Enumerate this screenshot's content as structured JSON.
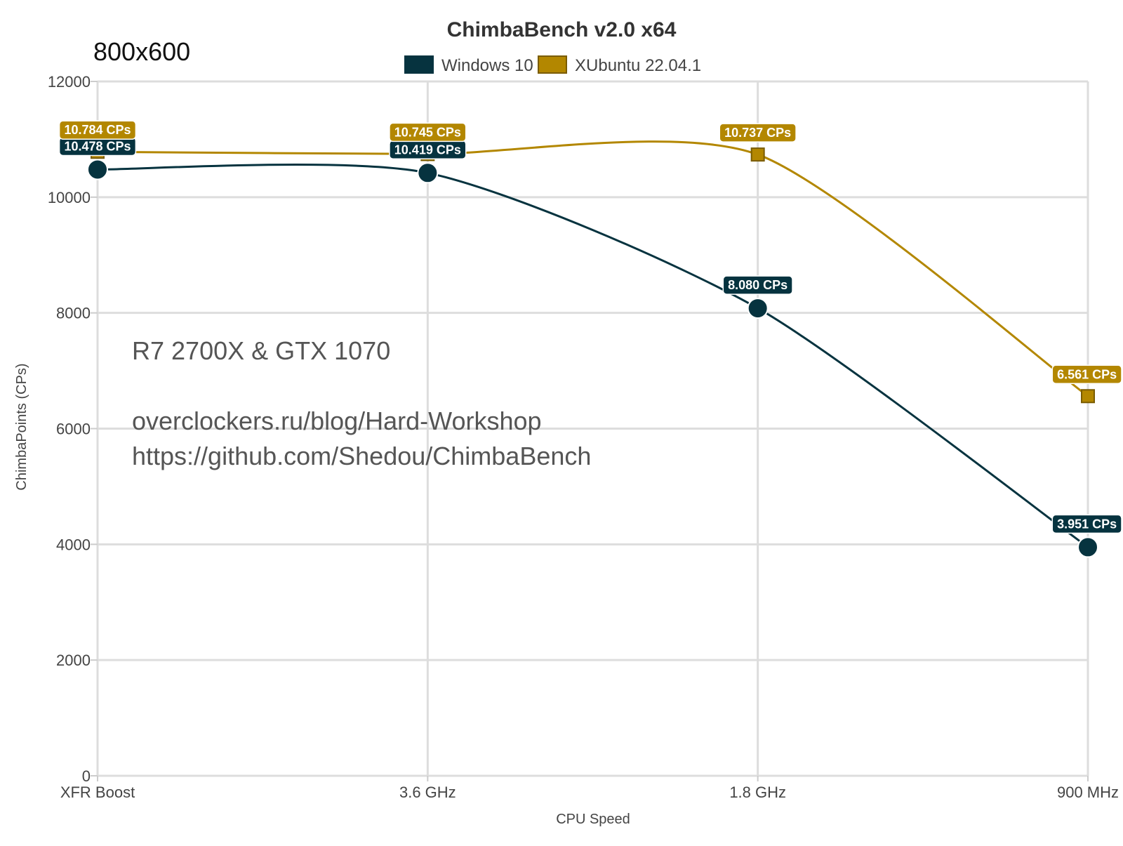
{
  "resolution_label": "800x600",
  "overlay": {
    "system": "R7 2700X & GTX 1070",
    "blog": "overclockers.ru/blog/Hard-Workshop",
    "github": "https://github.com/Shedou/ChimbaBench"
  },
  "chart_data": {
    "type": "line",
    "title": "ChimbaBench v2.0 x64",
    "xlabel": "CPU Speed",
    "ylabel": "ChimbaPoints (CPs)",
    "categories": [
      "XFR Boost",
      "3.6 GHz",
      "1.8 GHz",
      "900 MHz"
    ],
    "ylim": [
      0,
      12000
    ],
    "yticks": [
      0,
      2000,
      4000,
      6000,
      8000,
      10000,
      12000
    ],
    "grid": true,
    "legend_position": "top-center",
    "series": [
      {
        "name": "Windows 10",
        "color": "#06333f",
        "marker": "circle",
        "values": [
          10478,
          10419,
          8080,
          3951
        ],
        "labels": [
          "10.478 CPs",
          "10.419 CPs",
          "8.080 CPs",
          "3.951 CPs"
        ]
      },
      {
        "name": "XUbuntu 22.04.1",
        "color": "#b38700",
        "marker": "square",
        "values": [
          10784,
          10745,
          10737,
          6561
        ],
        "labels": [
          "10.784 CPs",
          "10.745 CPs",
          "10.737 CPs",
          "6.561 CPs"
        ]
      }
    ]
  }
}
